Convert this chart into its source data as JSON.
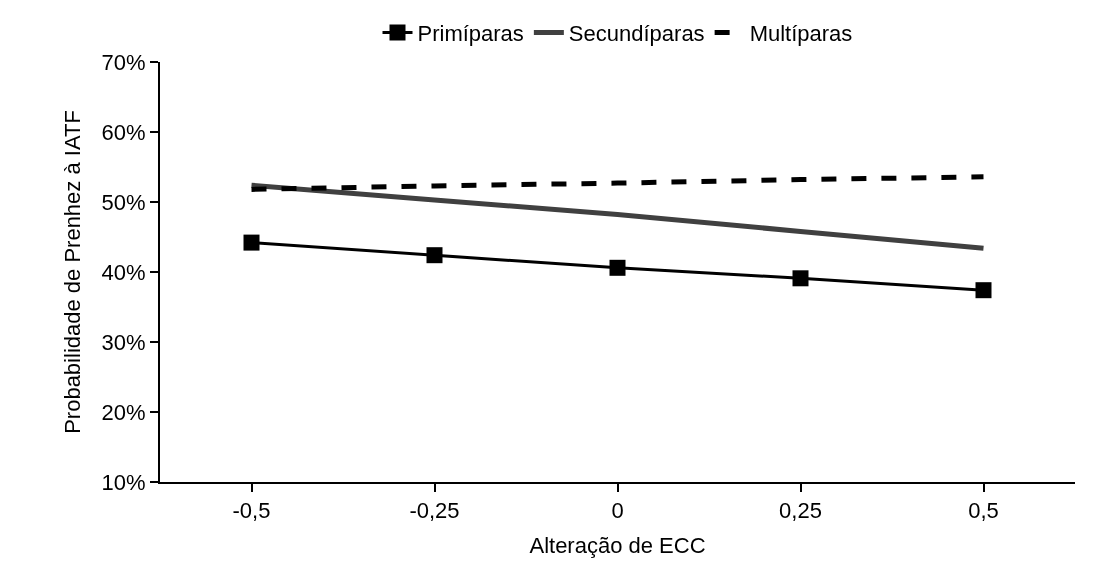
{
  "chart_data": {
    "type": "line",
    "xlabel": "Alteração de ECC",
    "ylabel": "Probabilidade de Prenhez à IATF",
    "categories": [
      "-0,5",
      "-0,25",
      "0",
      "0,25",
      "0,5"
    ],
    "ylim": [
      0.1,
      0.7
    ],
    "yticks": [
      {
        "value": 0.1,
        "label": "10%"
      },
      {
        "value": 0.2,
        "label": "20%"
      },
      {
        "value": 0.3,
        "label": "30%"
      },
      {
        "value": 0.4,
        "label": "40%"
      },
      {
        "value": 0.5,
        "label": "50%"
      },
      {
        "value": 0.6,
        "label": "60%"
      },
      {
        "value": 0.7,
        "label": "70%"
      }
    ],
    "legend": "top",
    "series": [
      {
        "name": "Primíparas",
        "color": "#000000",
        "values": [
          0.442,
          0.424,
          0.406,
          0.391,
          0.374
        ],
        "marker": "square",
        "line_style": "solid"
      },
      {
        "name": "Secundíparas",
        "color": "#404040",
        "values": [
          0.524,
          0.503,
          0.482,
          0.458,
          0.434
        ],
        "marker": "none",
        "line_style": "solid"
      },
      {
        "name": "Multíparas",
        "color": "#000000",
        "values": [
          0.518,
          0.523,
          0.527,
          0.532,
          0.536
        ],
        "marker": "none",
        "line_style": "dashed"
      }
    ]
  }
}
